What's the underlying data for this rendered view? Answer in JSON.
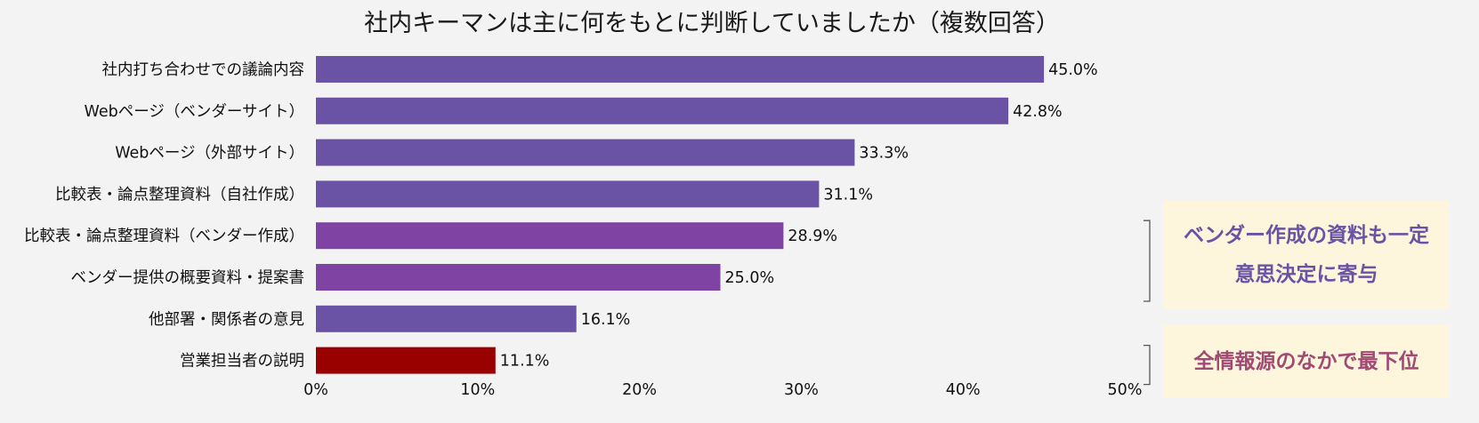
{
  "chart_data": {
    "type": "bar",
    "orientation": "horizontal",
    "title": "社内キーマンは主に何をもとに判断していましたか（複数回答）",
    "categories": [
      "社内打ち合わせでの議論内容",
      "Webページ（ベンダーサイト）",
      "Webページ（外部サイト）",
      "比較表・論点整理資料（自社作成）",
      "比較表・論点整理資料（ベンダー作成）",
      "ベンダー提供の概要資料・提案書",
      "他部署・関係者の意見",
      "営業担当者の説明"
    ],
    "values": [
      45.0,
      42.8,
      33.3,
      31.1,
      28.9,
      25.0,
      16.1,
      11.1
    ],
    "value_labels": [
      "45.0%",
      "42.8%",
      "33.3%",
      "31.1%",
      "28.9%",
      "25.0%",
      "16.1%",
      "11.1%"
    ],
    "bar_colors": [
      "#6a52a5",
      "#6a52a5",
      "#6a52a5",
      "#6a52a5",
      "#7e43a3",
      "#7e43a3",
      "#6a52a5",
      "#990000"
    ],
    "xlim": [
      0,
      50
    ],
    "xticks": [
      0,
      10,
      20,
      30,
      40,
      50
    ],
    "xtick_labels": [
      "0%",
      "10%",
      "20%",
      "30%",
      "40%",
      "50%"
    ],
    "xlabel": "",
    "ylabel": "",
    "grid": false
  },
  "annotations": [
    {
      "lines": [
        "ベンダー作成の資料も一定",
        "意思決定に寄与"
      ],
      "text_color": "#6a52a5",
      "background": "#fdf5dc",
      "bracket_range": [
        4,
        5
      ]
    },
    {
      "lines": [
        "全情報源のなかで最下位"
      ],
      "text_color": "#a04a73",
      "background": "#fdf5dc",
      "bracket_range": [
        7,
        7
      ]
    }
  ]
}
